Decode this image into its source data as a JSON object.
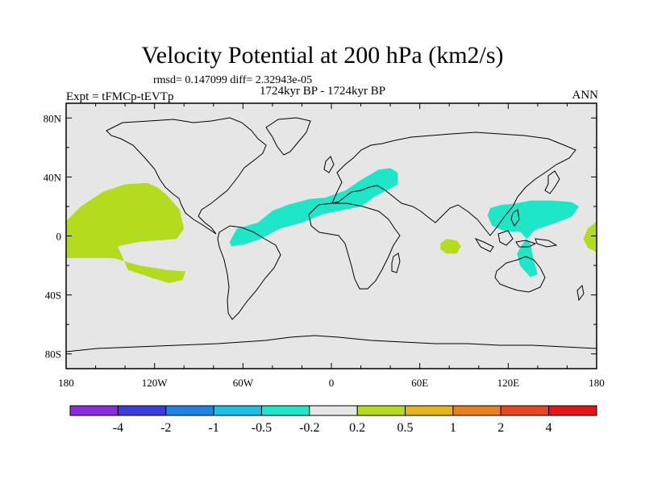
{
  "header": {
    "title": "Velocity Potential at 200 hPa (km2/s)",
    "stats": "rmsd= 0.147099 diff= 2.32943e-05",
    "period": "1724kyr BP - 1724kyr BP",
    "experiment": "Expt = tFMCp-tEVTp",
    "season": "ANN"
  },
  "chart_data": {
    "type": "heatmap",
    "title": "Velocity Potential at 200 hPa (km2/s)",
    "xlabel": "",
    "ylabel": "",
    "xlim": [
      -180,
      180
    ],
    "ylim": [
      -90,
      90
    ],
    "x_ticks": [
      {
        "value": -180,
        "label": "180"
      },
      {
        "value": -120,
        "label": "120W"
      },
      {
        "value": -60,
        "label": "60W"
      },
      {
        "value": 0,
        "label": "0"
      },
      {
        "value": 60,
        "label": "60E"
      },
      {
        "value": 120,
        "label": "120E"
      },
      {
        "value": 180,
        "label": "180"
      }
    ],
    "y_ticks": [
      {
        "value": 80,
        "label": "80N"
      },
      {
        "value": 40,
        "label": "40N"
      },
      {
        "value": 0,
        "label": "0"
      },
      {
        "value": -40,
        "label": "40S"
      },
      {
        "value": -80,
        "label": "80S"
      }
    ],
    "background_color": "#e6e6e6",
    "colorbar": {
      "labels": [
        "-4",
        "-2",
        "-1",
        "-0.5",
        "-0.2",
        "0.2",
        "0.5",
        "1",
        "2",
        "4"
      ],
      "colors": [
        "#8a2be2",
        "#3c3cdc",
        "#1e82e6",
        "#1ebee6",
        "#1ee6c8",
        "#e6e6e6",
        "#b4dc1e",
        "#e6b41e",
        "#e6821e",
        "#e6461e",
        "#e61414"
      ]
    },
    "regions": [
      {
        "name": "negative-atlantic-africa-mideast",
        "range": "-0.5 to -0.2",
        "color": "#1ee6c8",
        "points": [
          [
            -69,
            -4
          ],
          [
            -64,
            5
          ],
          [
            -50,
            9
          ],
          [
            -40,
            17
          ],
          [
            -30,
            21
          ],
          [
            -15,
            25
          ],
          [
            -4,
            26
          ],
          [
            10,
            31
          ],
          [
            20,
            38
          ],
          [
            27,
            42
          ],
          [
            32,
            45
          ],
          [
            40,
            46
          ],
          [
            45,
            43
          ],
          [
            45,
            35
          ],
          [
            38,
            31
          ],
          [
            30,
            27
          ],
          [
            20,
            20
          ],
          [
            10,
            18
          ],
          [
            -5,
            15
          ],
          [
            -20,
            9
          ],
          [
            -35,
            5
          ],
          [
            -48,
            -2
          ],
          [
            -60,
            -6
          ],
          [
            -68,
            -7
          ]
        ]
      },
      {
        "name": "negative-west-pacific-indonesia",
        "range": "-0.5 to -0.2",
        "color": "#1ee6c8",
        "points": [
          [
            108,
            19
          ],
          [
            115,
            21
          ],
          [
            125,
            22
          ],
          [
            135,
            24
          ],
          [
            150,
            24
          ],
          [
            163,
            23
          ],
          [
            168,
            20
          ],
          [
            163,
            13
          ],
          [
            150,
            8
          ],
          [
            138,
            4
          ],
          [
            130,
            -5
          ],
          [
            126,
            -12
          ],
          [
            128,
            -20
          ],
          [
            135,
            -28
          ],
          [
            140,
            -26
          ],
          [
            137,
            -15
          ],
          [
            135,
            -5
          ],
          [
            128,
            3
          ],
          [
            118,
            3
          ],
          [
            109,
            7
          ],
          [
            106,
            14
          ]
        ]
      },
      {
        "name": "positive-east-pacific",
        "range": "0.2 to 0.5",
        "color": "#b4dc1e",
        "points": [
          [
            -180,
            10
          ],
          [
            -170,
            20
          ],
          [
            -155,
            30
          ],
          [
            -140,
            35
          ],
          [
            -125,
            36
          ],
          [
            -118,
            33
          ],
          [
            -112,
            28
          ],
          [
            -103,
            18
          ],
          [
            -100,
            5
          ],
          [
            -105,
            -2
          ],
          [
            -130,
            -4
          ],
          [
            -145,
            -7
          ],
          [
            -138,
            -23
          ],
          [
            -120,
            -29
          ],
          [
            -110,
            -32
          ],
          [
            -101,
            -30
          ],
          [
            -99,
            -24
          ],
          [
            -112,
            -23
          ],
          [
            -130,
            -20
          ],
          [
            -148,
            -15
          ],
          [
            -165,
            -15
          ],
          [
            -180,
            -15
          ]
        ]
      },
      {
        "name": "positive-indian-ocean",
        "range": "0.2 to 0.5",
        "color": "#b4dc1e",
        "points": [
          [
            74,
            -5
          ],
          [
            78,
            -2
          ],
          [
            85,
            -3
          ],
          [
            88,
            -7
          ],
          [
            85,
            -12
          ],
          [
            78,
            -12
          ],
          [
            74,
            -9
          ]
        ]
      },
      {
        "name": "positive-dateline-east",
        "range": "0.2 to 0.5",
        "color": "#b4dc1e",
        "points": [
          [
            180,
            10
          ],
          [
            174,
            5
          ],
          [
            171,
            -2
          ],
          [
            174,
            -8
          ],
          [
            180,
            -11
          ]
        ]
      }
    ]
  }
}
